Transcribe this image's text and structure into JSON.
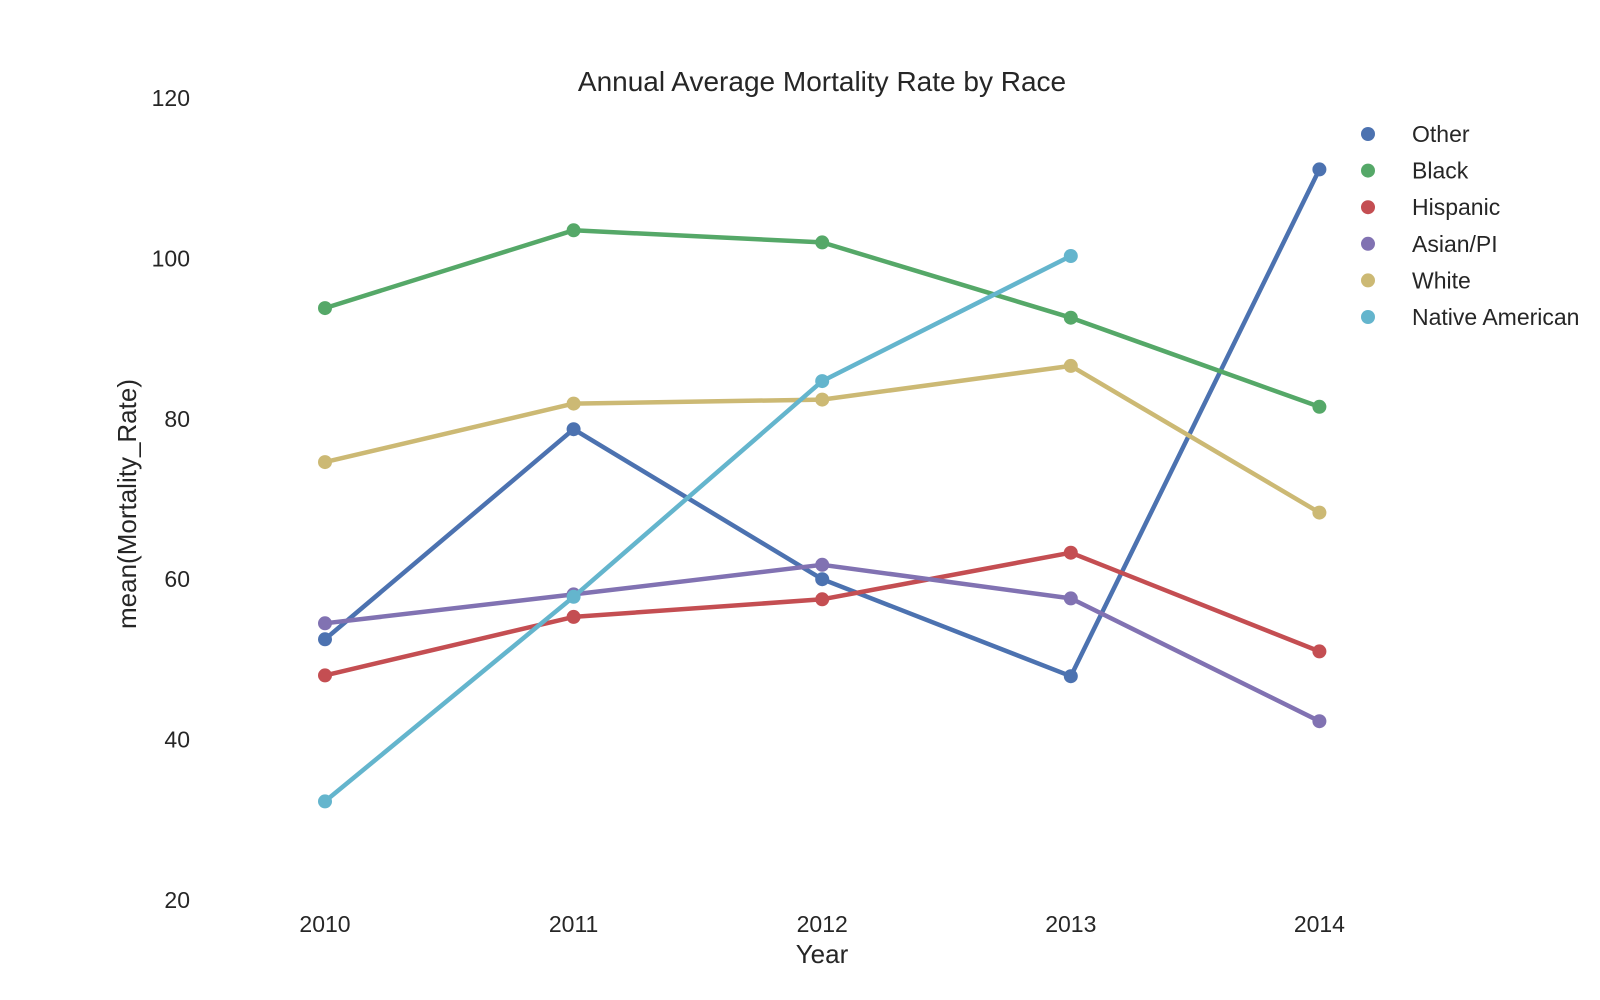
{
  "chart_data": {
    "type": "line",
    "title": "Annual Average Mortality Rate by Race",
    "xlabel": "Year",
    "ylabel": "mean(Mortality_Rate)",
    "categories": [
      "2010",
      "2011",
      "2012",
      "2013",
      "2014"
    ],
    "ylim": [
      20,
      120
    ],
    "yticks": [
      "20",
      "40",
      "60",
      "80",
      "100",
      "120"
    ],
    "grid": false,
    "legend_position": "top-right",
    "series": [
      {
        "name": "Other",
        "color": "#4c72b0",
        "values": [
          52.5,
          78.7,
          60.0,
          47.9,
          111.1
        ]
      },
      {
        "name": "Black",
        "color": "#55a868",
        "values": [
          93.8,
          103.5,
          102.0,
          92.6,
          81.5
        ]
      },
      {
        "name": "Hispanic",
        "color": "#c44e52",
        "values": [
          48.0,
          55.3,
          57.5,
          63.3,
          51.0
        ]
      },
      {
        "name": "Asian/PI",
        "color": "#8172b2",
        "values": [
          54.5,
          58.1,
          61.8,
          57.6,
          42.3
        ]
      },
      {
        "name": "White",
        "color": "#ccb974",
        "values": [
          74.6,
          81.9,
          82.4,
          86.6,
          68.3
        ]
      },
      {
        "name": "Native American",
        "color": "#64b5cd",
        "values": [
          32.3,
          57.8,
          84.7,
          100.3,
          null
        ]
      }
    ]
  }
}
